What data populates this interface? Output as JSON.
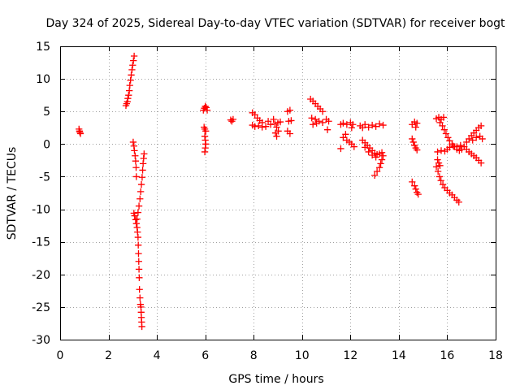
{
  "chart_data": {
    "type": "scatter",
    "title": "Day 324 of 2025, Sidereal Day-to-day VTEC variation (SDTVAR) for receiver bogt",
    "xlabel": "GPS time / hours",
    "ylabel": "SDTVAR / TECUs",
    "xlim": [
      0,
      18
    ],
    "ylim": [
      -30,
      15
    ],
    "xticks": [
      0,
      2,
      4,
      6,
      8,
      10,
      12,
      14,
      16,
      18
    ],
    "yticks": [
      15,
      10,
      5,
      0,
      -5,
      -10,
      -15,
      -20,
      -25,
      -30
    ],
    "grid": true,
    "marker": "+",
    "series": [
      {
        "name": "SDTVAR",
        "color": "#ff0000",
        "points": [
          [
            0.78,
            2.3
          ],
          [
            0.8,
            2.0
          ],
          [
            0.82,
            1.8
          ],
          [
            0.84,
            1.6
          ],
          [
            2.72,
            5.9
          ],
          [
            2.75,
            6.2
          ],
          [
            2.78,
            6.5
          ],
          [
            2.8,
            7.0
          ],
          [
            2.83,
            7.5
          ],
          [
            2.86,
            8.2
          ],
          [
            2.88,
            9.0
          ],
          [
            2.91,
            9.8
          ],
          [
            2.94,
            10.6
          ],
          [
            2.97,
            11.4
          ],
          [
            3.0,
            12.1
          ],
          [
            3.03,
            12.8
          ],
          [
            3.06,
            13.5
          ],
          [
            3.02,
            0.3
          ],
          [
            3.05,
            -0.3
          ],
          [
            3.07,
            -1.0
          ],
          [
            3.1,
            -1.8
          ],
          [
            3.12,
            -2.6
          ],
          [
            3.14,
            -3.6
          ],
          [
            3.15,
            -5.0
          ],
          [
            3.05,
            -10.6
          ],
          [
            3.08,
            -11.0
          ],
          [
            3.12,
            -11.6
          ],
          [
            3.15,
            -12.2
          ],
          [
            3.18,
            -12.8
          ],
          [
            3.2,
            -13.5
          ],
          [
            3.22,
            -14.3
          ],
          [
            3.23,
            -15.5
          ],
          [
            3.24,
            -16.8
          ],
          [
            3.25,
            -18.0
          ],
          [
            3.26,
            -19.2
          ],
          [
            3.27,
            -20.5
          ],
          [
            3.28,
            -22.3
          ],
          [
            3.3,
            -23.6
          ],
          [
            3.32,
            -24.6
          ],
          [
            3.34,
            -25.0
          ],
          [
            3.35,
            -25.8
          ],
          [
            3.36,
            -26.6
          ],
          [
            3.37,
            -27.3
          ],
          [
            3.38,
            -28.0
          ],
          [
            3.18,
            -11.5
          ],
          [
            3.22,
            -10.5
          ],
          [
            3.26,
            -9.5
          ],
          [
            3.3,
            -8.4
          ],
          [
            3.33,
            -7.3
          ],
          [
            3.36,
            -6.2
          ],
          [
            3.39,
            -5.1
          ],
          [
            3.41,
            -4.0
          ],
          [
            3.43,
            -3.0
          ],
          [
            3.45,
            -2.2
          ],
          [
            3.47,
            -1.5
          ],
          [
            5.92,
            5.2
          ],
          [
            5.96,
            5.5
          ],
          [
            6.0,
            5.8
          ],
          [
            6.04,
            5.6
          ],
          [
            6.08,
            5.2
          ],
          [
            5.95,
            2.6
          ],
          [
            5.98,
            2.3
          ],
          [
            6.02,
            2.0
          ],
          [
            5.98,
            1.2
          ],
          [
            6.0,
            0.6
          ],
          [
            6.02,
            0.0
          ],
          [
            6.0,
            -0.6
          ],
          [
            5.98,
            -1.2
          ],
          [
            7.05,
            3.7
          ],
          [
            7.1,
            3.5
          ],
          [
            7.15,
            3.8
          ],
          [
            7.95,
            4.8
          ],
          [
            8.05,
            4.5
          ],
          [
            8.15,
            4.0
          ],
          [
            8.25,
            3.6
          ],
          [
            8.35,
            3.3
          ],
          [
            7.95,
            2.9
          ],
          [
            8.05,
            2.7
          ],
          [
            8.2,
            2.8
          ],
          [
            8.35,
            2.6
          ],
          [
            8.5,
            2.7
          ],
          [
            8.6,
            3.5
          ],
          [
            8.7,
            3.0
          ],
          [
            8.82,
            3.8
          ],
          [
            8.88,
            3.1
          ],
          [
            8.95,
            2.6
          ],
          [
            9.0,
            3.3
          ],
          [
            8.9,
            1.7
          ],
          [
            8.95,
            1.2
          ],
          [
            9.02,
            2.0
          ],
          [
            9.1,
            3.4
          ],
          [
            9.4,
            5.0
          ],
          [
            9.5,
            5.2
          ],
          [
            9.45,
            3.5
          ],
          [
            9.55,
            3.6
          ],
          [
            9.4,
            2.0
          ],
          [
            9.5,
            1.6
          ],
          [
            10.35,
            6.9
          ],
          [
            10.45,
            6.6
          ],
          [
            10.55,
            6.2
          ],
          [
            10.65,
            5.8
          ],
          [
            10.75,
            5.4
          ],
          [
            10.85,
            5.0
          ],
          [
            10.4,
            4.0
          ],
          [
            10.55,
            3.8
          ],
          [
            10.7,
            3.5
          ],
          [
            10.85,
            3.3
          ],
          [
            10.45,
            3.0
          ],
          [
            10.6,
            3.2
          ],
          [
            11.0,
            3.8
          ],
          [
            11.1,
            3.5
          ],
          [
            11.05,
            2.2
          ],
          [
            11.6,
            3.0
          ],
          [
            11.7,
            3.2
          ],
          [
            11.85,
            3.0
          ],
          [
            12.0,
            3.3
          ],
          [
            12.1,
            3.0
          ],
          [
            12.05,
            2.5
          ],
          [
            11.8,
            1.5
          ],
          [
            11.7,
            1.0
          ],
          [
            11.85,
            0.6
          ],
          [
            11.95,
            0.3
          ],
          [
            12.05,
            0.0
          ],
          [
            12.15,
            -0.4
          ],
          [
            11.6,
            -0.7
          ],
          [
            12.4,
            2.8
          ],
          [
            12.5,
            2.5
          ],
          [
            12.6,
            3.0
          ],
          [
            12.75,
            2.6
          ],
          [
            12.9,
            2.9
          ],
          [
            13.05,
            2.7
          ],
          [
            13.2,
            3.1
          ],
          [
            13.35,
            2.9
          ],
          [
            12.5,
            0.6
          ],
          [
            12.6,
            0.2
          ],
          [
            12.7,
            -0.2
          ],
          [
            12.8,
            -0.6
          ],
          [
            12.9,
            -1.0
          ],
          [
            13.0,
            -1.4
          ],
          [
            13.1,
            -1.6
          ],
          [
            13.2,
            -1.5
          ],
          [
            13.3,
            -1.3
          ],
          [
            13.35,
            -1.8
          ],
          [
            12.6,
            -0.5
          ],
          [
            12.75,
            -1.2
          ],
          [
            12.9,
            -1.7
          ],
          [
            13.05,
            -2.0
          ],
          [
            13.3,
            -2.4
          ],
          [
            13.25,
            -3.0
          ],
          [
            13.2,
            -3.6
          ],
          [
            13.1,
            -4.2
          ],
          [
            13.0,
            -4.8
          ],
          [
            14.55,
            3.0
          ],
          [
            14.65,
            3.4
          ],
          [
            14.75,
            3.2
          ],
          [
            14.7,
            2.6
          ],
          [
            14.55,
            0.8
          ],
          [
            14.6,
            0.3
          ],
          [
            14.65,
            -0.2
          ],
          [
            14.7,
            -0.6
          ],
          [
            14.75,
            -0.9
          ],
          [
            14.55,
            -5.8
          ],
          [
            14.65,
            -6.4
          ],
          [
            14.7,
            -6.9
          ],
          [
            14.75,
            -7.4
          ],
          [
            14.8,
            -7.7
          ],
          [
            15.55,
            3.9
          ],
          [
            15.65,
            4.1
          ],
          [
            15.75,
            3.8
          ],
          [
            15.85,
            4.1
          ],
          [
            15.7,
            3.3
          ],
          [
            15.8,
            2.8
          ],
          [
            15.88,
            2.2
          ],
          [
            15.95,
            1.6
          ],
          [
            16.03,
            1.0
          ],
          [
            16.1,
            0.5
          ],
          [
            16.2,
            0.0
          ],
          [
            16.3,
            -0.4
          ],
          [
            16.4,
            -0.8
          ],
          [
            16.5,
            -1.0
          ],
          [
            16.6,
            -0.8
          ],
          [
            15.6,
            -1.2
          ],
          [
            15.75,
            -1.0
          ],
          [
            15.9,
            -1.1
          ],
          [
            16.0,
            -0.8
          ],
          [
            16.1,
            -0.5
          ],
          [
            16.25,
            -0.3
          ],
          [
            16.4,
            -0.4
          ],
          [
            16.55,
            -0.2
          ],
          [
            16.7,
            -0.4
          ],
          [
            15.55,
            -3.5
          ],
          [
            15.62,
            -4.2
          ],
          [
            15.68,
            -5.0
          ],
          [
            15.74,
            -5.6
          ],
          [
            15.82,
            -6.2
          ],
          [
            15.9,
            -6.7
          ],
          [
            16.0,
            -7.1
          ],
          [
            16.1,
            -7.5
          ],
          [
            16.2,
            -7.8
          ],
          [
            16.3,
            -8.2
          ],
          [
            16.4,
            -8.6
          ],
          [
            16.48,
            -8.9
          ],
          [
            15.6,
            -2.4
          ],
          [
            15.65,
            -2.9
          ],
          [
            15.7,
            -3.3
          ],
          [
            16.8,
            0.3
          ],
          [
            16.9,
            0.8
          ],
          [
            17.0,
            1.3
          ],
          [
            17.1,
            1.7
          ],
          [
            17.2,
            2.1
          ],
          [
            17.3,
            2.5
          ],
          [
            17.4,
            2.8
          ],
          [
            17.05,
            0.6
          ],
          [
            17.2,
            1.0
          ],
          [
            17.35,
            1.2
          ],
          [
            17.45,
            0.8
          ],
          [
            16.8,
            -0.8
          ],
          [
            16.9,
            -1.2
          ],
          [
            17.0,
            -1.5
          ],
          [
            17.1,
            -1.8
          ],
          [
            17.2,
            -2.1
          ],
          [
            17.3,
            -2.5
          ],
          [
            17.4,
            -2.9
          ]
        ]
      }
    ]
  }
}
